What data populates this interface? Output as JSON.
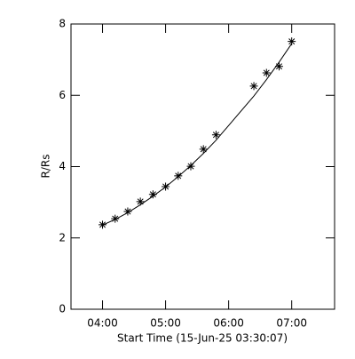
{
  "chart_data": {
    "type": "scatter",
    "xlabel": "Start Time (15-Jun-25 03:30:07)",
    "ylabel": "R/Rs",
    "x": [
      4.0,
      4.2,
      4.4,
      4.6,
      4.8,
      5.0,
      5.2,
      5.4,
      5.6,
      5.8,
      6.4,
      6.6,
      6.8,
      7.0
    ],
    "series": [
      {
        "marker": "asterisk",
        "color": "#000000",
        "values": [
          2.37,
          2.54,
          2.74,
          3.02,
          3.22,
          3.44,
          3.74,
          4.01,
          4.49,
          4.89,
          6.26,
          6.63,
          6.81,
          7.51
        ]
      },
      {
        "marker": "line",
        "color": "#000000",
        "values": [
          2.36,
          2.52,
          2.71,
          2.93,
          3.17,
          3.43,
          3.72,
          4.03,
          4.37,
          4.74,
          5.98,
          6.44,
          6.93,
          7.45
        ]
      }
    ],
    "xlim": [
      3.5,
      7.68
    ],
    "xticks": [
      {
        "value": 4,
        "label": "04:00"
      },
      {
        "value": 5,
        "label": "05:00"
      },
      {
        "value": 6,
        "label": "06:00"
      },
      {
        "value": 7,
        "label": "07:00"
      }
    ],
    "ylim": [
      0,
      8
    ],
    "yticks": [
      0,
      2,
      4,
      6,
      8
    ],
    "grid": false
  }
}
